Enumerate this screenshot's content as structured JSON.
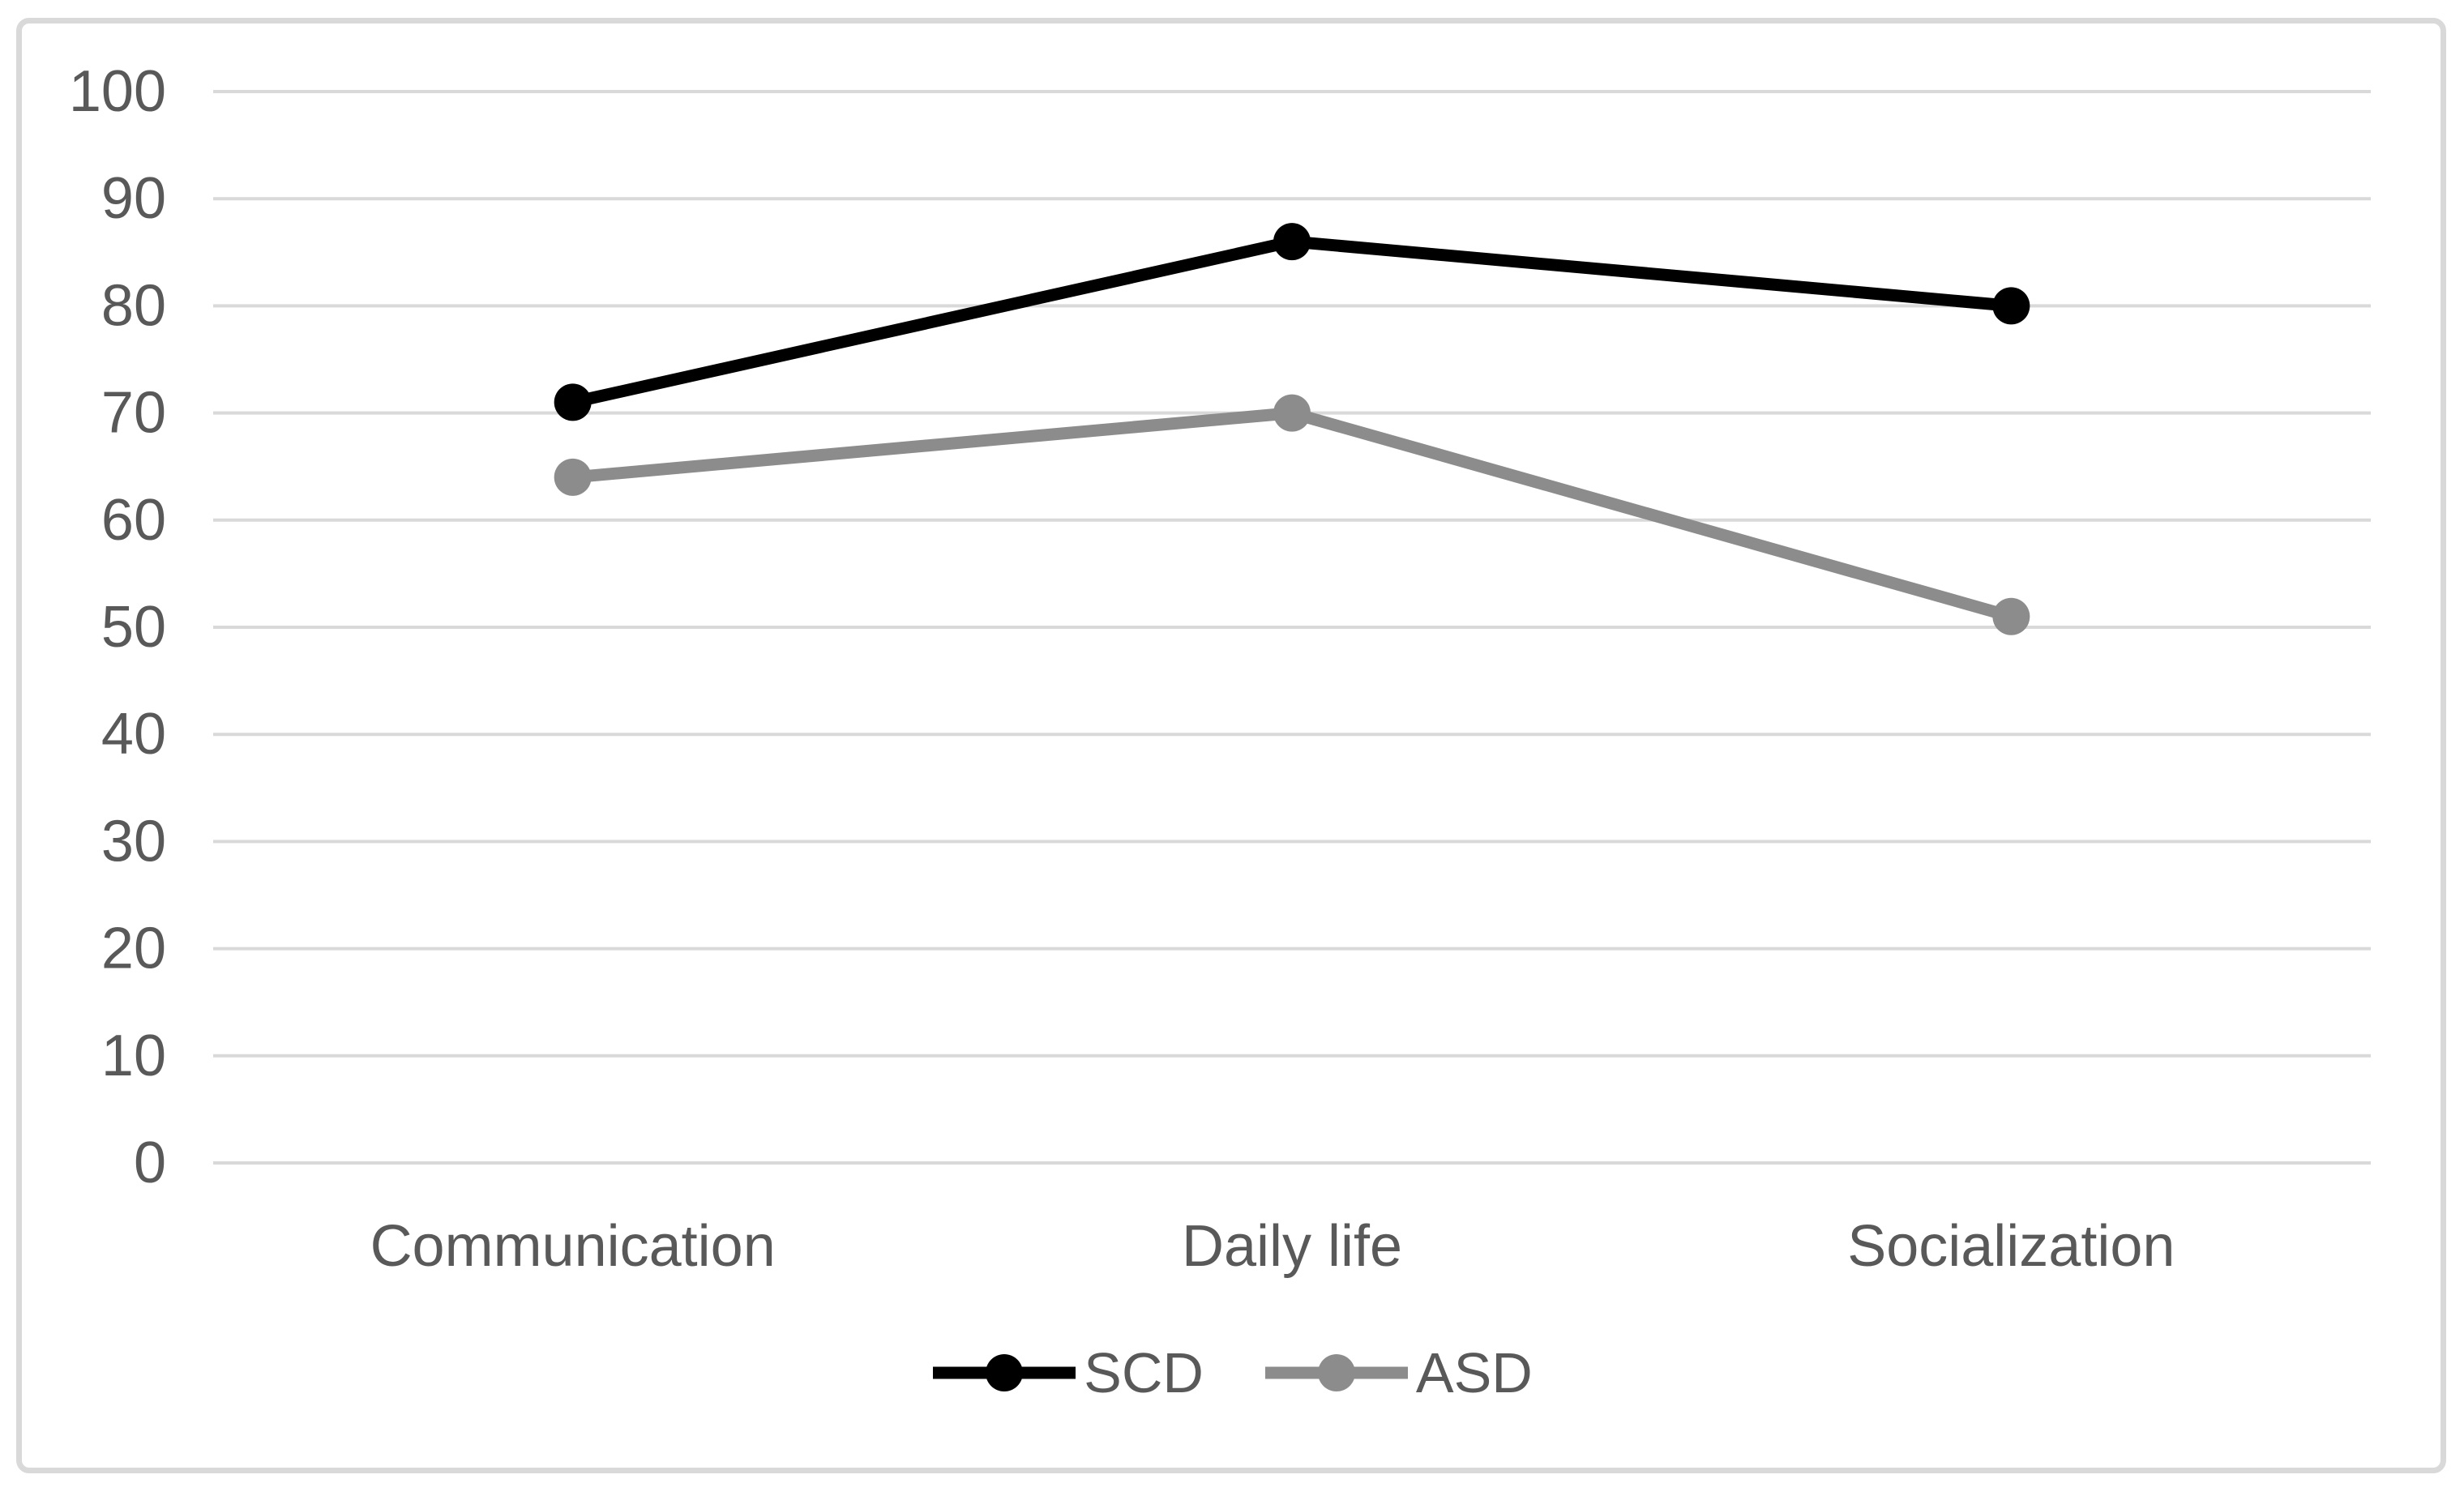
{
  "chart_data": {
    "type": "line",
    "categories": [
      "Communication",
      "Daily life",
      "Socialization"
    ],
    "series": [
      {
        "name": "SCD",
        "values": [
          71,
          86,
          80
        ],
        "color": "#000000"
      },
      {
        "name": "ASD",
        "values": [
          64,
          70,
          51
        ],
        "color": "#8C8C8C"
      }
    ],
    "ylim": [
      0,
      100
    ],
    "ytick_step": 10,
    "ytick_labels": [
      "0",
      "10",
      "20",
      "30",
      "40",
      "50",
      "60",
      "70",
      "80",
      "90",
      "100"
    ],
    "grid": true,
    "legend_position": "bottom-center",
    "marker": "circle"
  },
  "colors": {
    "gridline": "#D9D9D9",
    "frame_border": "#D9D9D9",
    "axis_text": "#595959",
    "background": "#FFFFFF"
  }
}
